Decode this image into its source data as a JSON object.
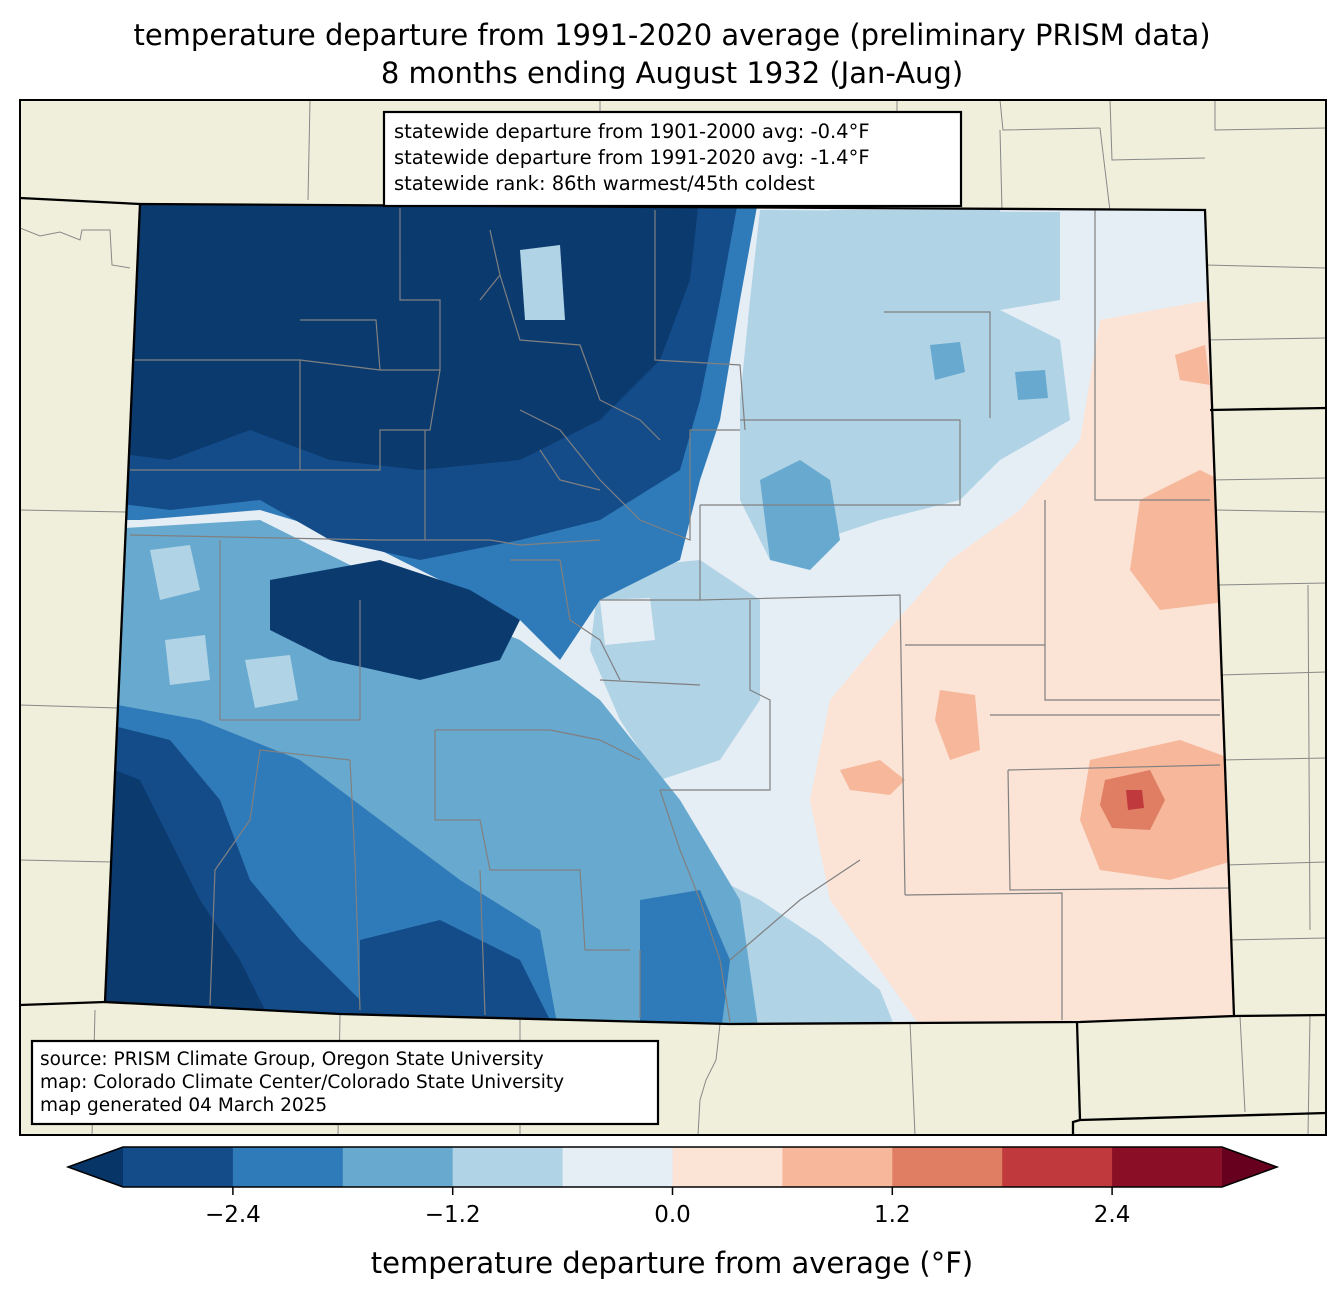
{
  "title": {
    "line1": "temperature departure from 1991-2020 average (preliminary PRISM data)",
    "line2": "8 months ending August 1932 (Jan-Aug)"
  },
  "stats": {
    "line1": "statewide departure from 1901-2000 avg: -0.4°F",
    "line2": "statewide departure from 1991-2020 avg: -1.4°F",
    "line3": "statewide rank: 86th warmest/45th coldest"
  },
  "source": {
    "line1": "source: PRISM Climate Group, Oregon State University",
    "line2": "map: Colorado Climate Center/Colorado State University",
    "line3": "map generated 04 March 2025"
  },
  "colorbar": {
    "label": "temperature departure from average (°F)",
    "ticks": [
      "−2.4",
      "−1.2",
      "0.0",
      "1.2",
      "2.4"
    ],
    "tick_values": [
      -2.4,
      -1.2,
      0.0,
      1.2,
      2.4
    ],
    "bounds": [
      -3.0,
      -2.4,
      -1.8,
      -1.2,
      -0.6,
      0.0,
      0.6,
      1.2,
      1.8,
      2.4,
      3.0
    ],
    "colors": [
      "#144c8a",
      "#2f7ab8",
      "#68a9cf",
      "#b0d3e6",
      "#e6eef5",
      "#fbe3d6",
      "#f6b79a",
      "#e07e64",
      "#c03a3d",
      "#8a0e25"
    ],
    "under_color": "#073568",
    "over_color": "#67001f"
  },
  "map_colors": {
    "land": "#efefdc",
    "very_cold": "#0b3a6f",
    "cold": "#144c8a",
    "cool": "#2f7ab8",
    "mild_cool": "#68a9cf",
    "slight_cool": "#b0d3e6",
    "near_zero": "#e6eef5",
    "slight_warm": "#fbe3d6",
    "warm": "#f6b79a",
    "warmer": "#e07e64",
    "hot": "#c03a3d"
  }
}
